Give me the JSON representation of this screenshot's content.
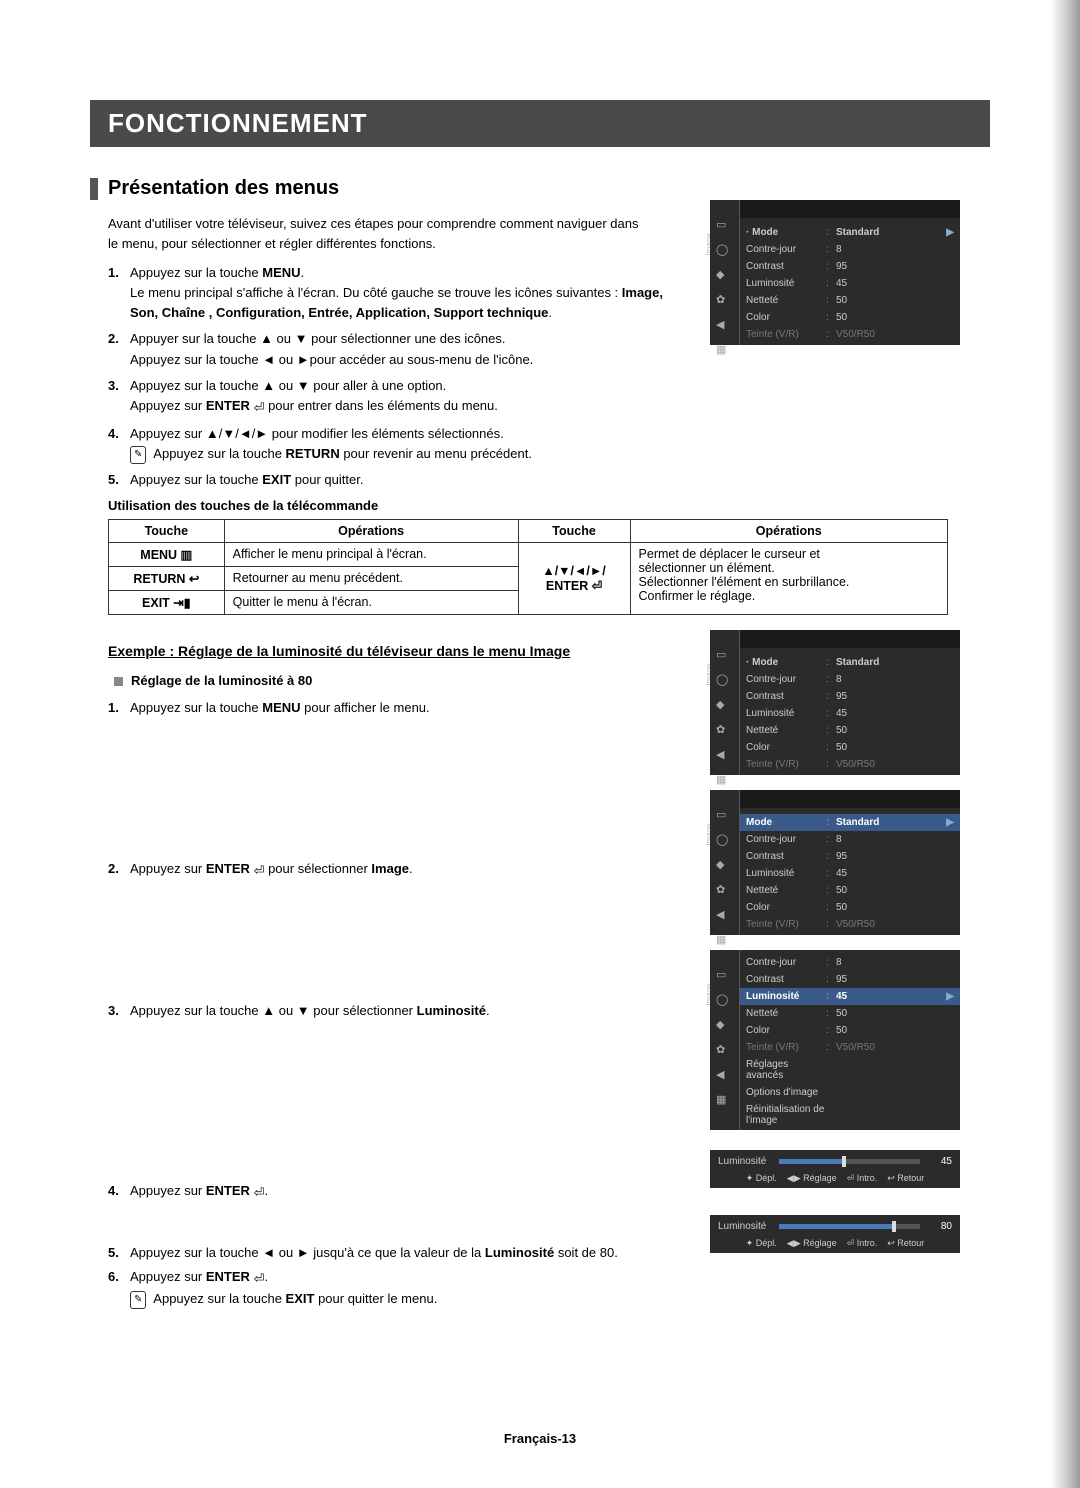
{
  "title": "FONCTIONNEMENT",
  "section": "Présentation des menus",
  "intro": "Avant d'utiliser votre téléviseur, suivez ces étapes pour comprendre comment naviguer dans le menu, pour sélectionner et régler différentes fonctions.",
  "steps": [
    {
      "n": "1.",
      "a": "Appuyez sur la touche ",
      "b": "MENU",
      "c": ".",
      "d": "Le menu principal s'affiche à l'écran. Du côté gauche se trouve les icônes suivantes : ",
      "e": "Image, Son, Chaîne , Configuration, Entrée, Application, Support technique",
      "f": "."
    },
    {
      "n": "2.",
      "a": "Appuyer sur la touche ▲ ou ▼ pour sélectionner une des icônes.",
      "b": "Appuyez sur la touche ◄ ou ►pour accéder au sous-menu de l'icône."
    },
    {
      "n": "3.",
      "a": "Appuyez sur la touche ▲ ou ▼ pour aller à une option.",
      "b": "Appuyez sur ",
      "c": "ENTER",
      "d": " pour entrer dans les éléments du menu."
    },
    {
      "n": "4.",
      "a": "Appuyez sur ▲/▼/◄/► pour modifier les éléments sélectionnés.",
      "b": "Appuyez sur la touche ",
      "c": "RETURN",
      "d": " pour revenir au menu précédent."
    },
    {
      "n": "5.",
      "a": "Appuyez sur la touche ",
      "b": "EXIT",
      "c": " pour quitter."
    }
  ],
  "remote_head": "Utilisation des touches de la télécommande",
  "table": {
    "h": [
      "Touche",
      "Opérations",
      "Touche",
      "Opérations"
    ],
    "rows": [
      [
        "MENU ▥",
        "Afficher le menu principal à l'écran.",
        "▲/▼/◄/►/",
        "Permet de déplacer le curseur et"
      ],
      [
        "RETURN ↩",
        "Retourner au menu précédent.",
        "ENTER ⏎",
        "sélectionner un élément."
      ],
      [
        "EXIT ⇥▮",
        "Quitter le menu à l'écran.",
        "",
        "Sélectionner l'élément en surbrillance."
      ],
      [
        "",
        "",
        "",
        "Confirmer le réglage."
      ]
    ]
  },
  "example_head": "Exemple : Réglage de la luminosité du téléviseur dans le menu Image",
  "reglage_head": "Réglage de la luminosité à 80",
  "ex_steps": {
    "s1": {
      "n": "1.",
      "t1": "Appuyez sur la touche ",
      "b": "MENU",
      "t2": " pour afficher le menu."
    },
    "s2": {
      "n": "2.",
      "t1": "Appuyez sur ",
      "b": "ENTER",
      "t2": " pour sélectionner ",
      "b2": "Image",
      "t3": "."
    },
    "s3": {
      "n": "3.",
      "t1": "Appuyez sur la touche ▲ ou ▼ pour sélectionner ",
      "b": "Luminosité",
      "t2": "."
    },
    "s4": {
      "n": "4.",
      "t1": "Appuyez sur ",
      "b": "ENTER",
      "t2": "."
    },
    "s5": {
      "n": "5.",
      "t1": "Appuyez sur la touche ◄ ou ► jusqu'à ce que la valeur de la ",
      "b": "Luminosité",
      "t2": " soit de 80."
    },
    "s6": {
      "n": "6.",
      "t1": "Appuyez sur ",
      "b": "ENTER",
      "t2": ".",
      "note": "Appuyez sur la touche ",
      "nb": "EXIT",
      "note2": " pour quitter le menu."
    }
  },
  "osd": {
    "side": "Image",
    "items": [
      {
        "k": "Mode",
        "v": "Standard",
        "hl": false,
        "bold": true
      },
      {
        "k": "Contre-jour",
        "v": "8"
      },
      {
        "k": "Contrast",
        "v": "95"
      },
      {
        "k": "Luminosité",
        "v": "45"
      },
      {
        "k": "Netteté",
        "v": "50"
      },
      {
        "k": "Color",
        "v": "50"
      },
      {
        "k": "Teinte (V/R)",
        "v": "V50/R50",
        "dim": true
      }
    ],
    "items_hl_mode": [
      {
        "k": "Mode",
        "v": "Standard",
        "hl": true
      },
      {
        "k": "Contre-jour",
        "v": "8"
      },
      {
        "k": "Contrast",
        "v": "95"
      },
      {
        "k": "Luminosité",
        "v": "45"
      },
      {
        "k": "Netteté",
        "v": "50"
      },
      {
        "k": "Color",
        "v": "50"
      },
      {
        "k": "Teinte (V/R)",
        "v": "V50/R50",
        "dim": true
      }
    ],
    "items_hl_lum": [
      {
        "k": "Contre-jour",
        "v": "8"
      },
      {
        "k": "Contrast",
        "v": "95"
      },
      {
        "k": "Luminosité",
        "v": "45",
        "hl": true
      },
      {
        "k": "Netteté",
        "v": "50"
      },
      {
        "k": "Color",
        "v": "50"
      },
      {
        "k": "Teinte (V/R)",
        "v": "V50/R50",
        "dim": true
      },
      {
        "k": "Réglages avancés",
        "v": ""
      },
      {
        "k": "Options d'image",
        "v": ""
      },
      {
        "k": "Réinitialisation de l'image",
        "v": ""
      }
    ]
  },
  "slider": {
    "label": "Luminosité",
    "v45": "45",
    "v80": "80",
    "legend": [
      "✦ Dépl.",
      "◀▶ Réglage",
      "⏎ Intro.",
      "↩ Retour"
    ]
  },
  "footer": {
    "lang": "Français",
    "sep": " - ",
    "page": "13"
  },
  "colors": {
    "bar": "#4a4a4a",
    "osd_bg": "#2b2b2b",
    "osd_hl": "#3a5a8a"
  }
}
